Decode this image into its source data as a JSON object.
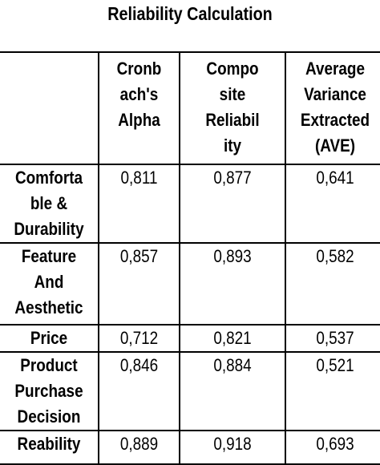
{
  "title": "Reliability Calculation",
  "table": {
    "headers": [
      "",
      "Cronb\nach's\nAlpha",
      "Compo\nsite\nReliabil\nity",
      "Average\nVariance\nExtracted\n(AVE)"
    ],
    "rows": [
      {
        "label": "Comforta\nble &\nDurability",
        "values": [
          "0,811",
          "0,877",
          "0,641"
        ]
      },
      {
        "label": "Feature\nAnd\nAesthetic",
        "values": [
          "0,857",
          "0,893",
          "0,582"
        ]
      },
      {
        "label": "Price",
        "values": [
          "0,712",
          "0,821",
          "0,537"
        ]
      },
      {
        "label": "Product\nPurchase\nDecision",
        "values": [
          "0,846",
          "0,884",
          "0,521"
        ]
      },
      {
        "label": "Reability",
        "values": [
          "0,889",
          "0,918",
          "0,693"
        ]
      }
    ]
  }
}
